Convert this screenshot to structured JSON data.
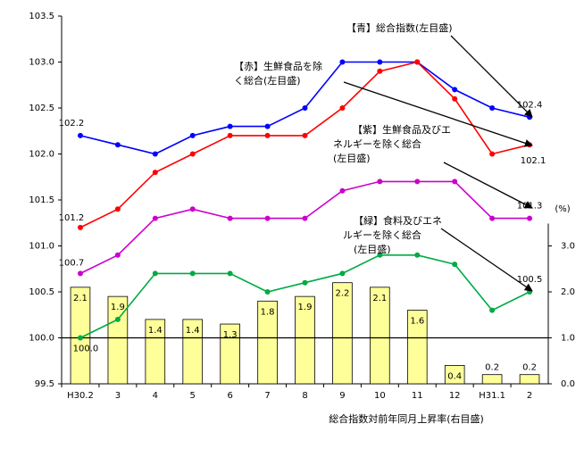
{
  "chart_data": {
    "type": "line",
    "categories": [
      "H30.2",
      "3",
      "4",
      "5",
      "6",
      "7",
      "8",
      "9",
      "10",
      "11",
      "12",
      "H31.1",
      "2"
    ],
    "ylim": [
      99.5,
      103.5
    ],
    "yticks": [
      {
        "value": 99.5,
        "label": "99.5"
      },
      {
        "value": 100,
        "label": "100.0"
      },
      {
        "value": 100.5,
        "label": "100.5"
      },
      {
        "value": 101,
        "label": "101.0"
      },
      {
        "value": 101.5,
        "label": "101.5"
      },
      {
        "value": 102,
        "label": "102.0"
      },
      {
        "value": 102.5,
        "label": "102.5"
      },
      {
        "value": 103,
        "label": "103.0"
      },
      {
        "value": 103.5,
        "label": "103.5"
      }
    ],
    "y2lim": [
      0,
      8
    ],
    "y2ticks": [
      {
        "value": 0,
        "label": "0.0"
      },
      {
        "value": 1,
        "label": "1.0"
      },
      {
        "value": 2,
        "label": "2.0"
      },
      {
        "value": 3,
        "label": "3.0"
      }
    ],
    "y2_unit": "(%)",
    "x_label": "総合指数対前年同月上昇率(右目盛)",
    "series": [
      {
        "type": "bar",
        "axis": "y2",
        "color": "#ffff99",
        "values": [
          2.1,
          1.9,
          1.4,
          1.4,
          1.3,
          1.8,
          1.9,
          2.2,
          2.1,
          1.6,
          0.4,
          0.2,
          0.2
        ]
      },
      {
        "type": "line",
        "color": "#0000ff",
        "values": [
          102.2,
          102.1,
          102.0,
          102.2,
          102.3,
          102.3,
          102.5,
          103.0,
          103.0,
          103.0,
          102.7,
          102.5,
          102.4
        ],
        "value_labels": [
          "102.2",
          null,
          null,
          null,
          null,
          null,
          null,
          null,
          null,
          null,
          null,
          null,
          "102.4"
        ]
      },
      {
        "type": "line",
        "color": "#ff0000",
        "values": [
          101.2,
          101.4,
          101.8,
          102.0,
          102.2,
          102.2,
          102.2,
          102.5,
          102.9,
          103.0,
          102.6,
          102.0,
          102.1
        ],
        "value_labels": [
          "101.2",
          null,
          null,
          null,
          null,
          null,
          null,
          null,
          null,
          null,
          null,
          null,
          "102.1"
        ]
      },
      {
        "type": "line",
        "color": "#cc00cc",
        "values": [
          100.7,
          100.9,
          101.3,
          101.4,
          101.3,
          101.3,
          101.3,
          101.6,
          101.7,
          101.7,
          101.7,
          101.3,
          101.3
        ],
        "value_labels": [
          "100.7",
          null,
          null,
          null,
          null,
          null,
          null,
          null,
          null,
          null,
          null,
          null,
          "101.3"
        ]
      },
      {
        "type": "line",
        "color": "#00aa44",
        "values": [
          100.0,
          100.2,
          100.7,
          100.7,
          100.7,
          100.5,
          100.6,
          100.7,
          100.9,
          100.9,
          100.8,
          100.3,
          100.5
        ],
        "value_labels": [
          "100.0",
          null,
          null,
          null,
          null,
          null,
          null,
          null,
          null,
          null,
          null,
          null,
          "100.5"
        ]
      }
    ],
    "annotations": [
      {
        "lines": [
          "【青】総合指数(左目盛)"
        ]
      },
      {
        "lines": [
          "【赤】生鮮食品を除",
          "く総合(左目盛)"
        ]
      },
      {
        "lines": [
          "【紫】生鮮食品及びエ",
          "ネルギーを除く総合",
          "(左目盛)"
        ]
      },
      {
        "lines": [
          "【緑】食料及びエネ",
          "ルギーを除く総合",
          "(左目盛)"
        ]
      }
    ]
  }
}
